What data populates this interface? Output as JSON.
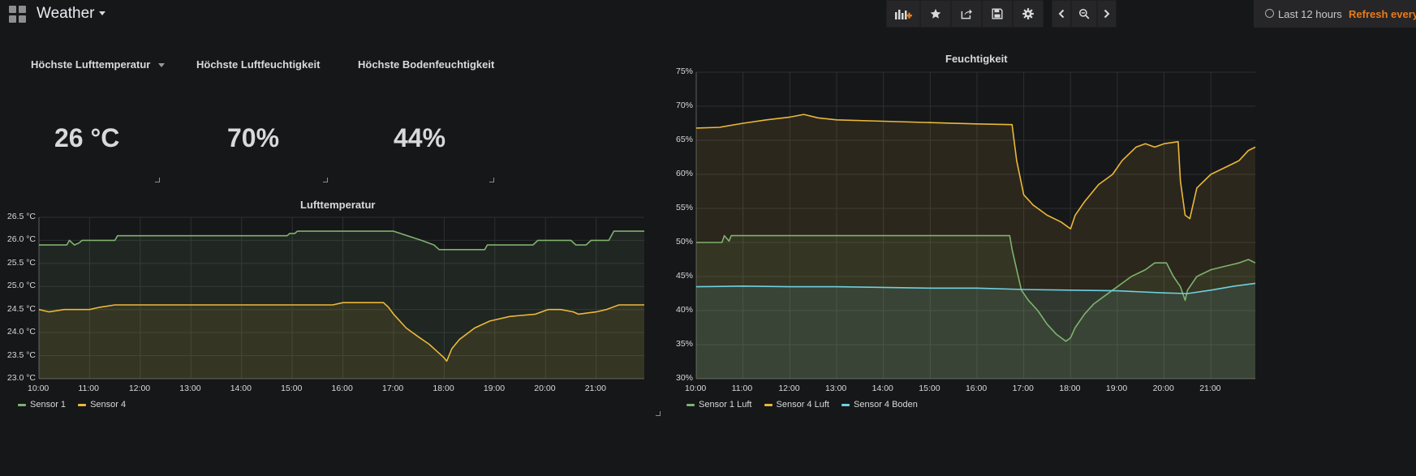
{
  "dashboard": {
    "title": "Weather"
  },
  "toolbar": {
    "buttons": [
      {
        "name": "add-panel-button",
        "icon": "add-panel-icon"
      },
      {
        "name": "star-button",
        "icon": "star-icon"
      },
      {
        "name": "share-button",
        "icon": "share-icon"
      },
      {
        "name": "save-button",
        "icon": "save-icon"
      },
      {
        "name": "settings-button",
        "icon": "gear-icon"
      }
    ],
    "time_range": "Last 12 hours",
    "refresh_label": "Refresh every"
  },
  "stats": [
    {
      "title": "Höchste Lufttemperatur",
      "value": "26 °C"
    },
    {
      "title": "Höchste Luftfeuchtigkeit",
      "value": "70%"
    },
    {
      "title": "Höchste Bodenfeuchtigkeit",
      "value": "44%"
    }
  ],
  "colors": {
    "green": "#7eb26d",
    "yellow": "#eab839",
    "blue": "#6ed0e0",
    "accent": "#eb7b18"
  },
  "chart_data": [
    {
      "type": "line",
      "title": "Lufttemperatur",
      "unit": "°C",
      "ylim": [
        23.0,
        26.5
      ],
      "yticks": [
        "26.5 °C",
        "26.0 °C",
        "25.5 °C",
        "25.0 °C",
        "24.5 °C",
        "24.0 °C",
        "23.5 °C",
        "23.0 °C"
      ],
      "ytick_values": [
        26.5,
        26.0,
        25.5,
        25.0,
        24.5,
        24.0,
        23.5,
        23.0
      ],
      "xlim": [
        10.0,
        21.95
      ],
      "xticks": [
        "10:00",
        "11:00",
        "12:00",
        "13:00",
        "14:00",
        "15:00",
        "16:00",
        "17:00",
        "18:00",
        "19:00",
        "20:00",
        "21:00"
      ],
      "xtick_values": [
        10,
        11,
        12,
        13,
        14,
        15,
        16,
        17,
        18,
        19,
        20,
        21
      ],
      "grid": true,
      "legend": "bottom-left",
      "series": [
        {
          "name": "Sensor 1",
          "color": "#7eb26d",
          "x": [
            10.0,
            10.55,
            10.6,
            10.7,
            10.8,
            10.85,
            11.5,
            11.55,
            12.0,
            12.6,
            12.65,
            14.0,
            14.9,
            14.95,
            15.05,
            15.1,
            15.7,
            16.5,
            17.0,
            17.55,
            17.8,
            17.9,
            18.8,
            18.85,
            19.0,
            19.75,
            19.85,
            20.4,
            20.5,
            20.6,
            20.8,
            20.9,
            21.25,
            21.35,
            21.95
          ],
          "y": [
            25.9,
            25.9,
            26.0,
            25.9,
            25.95,
            26.0,
            26.0,
            26.1,
            26.1,
            26.1,
            26.1,
            26.1,
            26.1,
            26.15,
            26.15,
            26.2,
            26.2,
            26.2,
            26.2,
            26.0,
            25.9,
            25.8,
            25.8,
            25.9,
            25.9,
            25.9,
            26.0,
            26.0,
            26.0,
            25.9,
            25.9,
            26.0,
            26.0,
            26.2,
            26.2
          ]
        },
        {
          "name": "Sensor 4",
          "color": "#eab839",
          "x": [
            10.0,
            10.2,
            10.5,
            11.0,
            11.2,
            11.5,
            12.0,
            13.0,
            14.0,
            15.0,
            15.8,
            16.0,
            16.5,
            16.8,
            16.9,
            17.0,
            17.25,
            17.5,
            17.7,
            17.9,
            18.0,
            18.05,
            18.15,
            18.3,
            18.6,
            18.9,
            19.3,
            19.8,
            20.05,
            20.3,
            20.55,
            20.65,
            21.0,
            21.2,
            21.45,
            21.95
          ],
          "y": [
            24.5,
            24.45,
            24.5,
            24.5,
            24.55,
            24.6,
            24.6,
            24.6,
            24.6,
            24.6,
            24.6,
            24.65,
            24.65,
            24.65,
            24.55,
            24.4,
            24.1,
            23.9,
            23.75,
            23.55,
            23.45,
            23.38,
            23.65,
            23.85,
            24.1,
            24.25,
            24.35,
            24.4,
            24.5,
            24.5,
            24.45,
            24.4,
            24.45,
            24.5,
            24.6,
            24.6
          ]
        }
      ]
    },
    {
      "type": "line",
      "title": "Feuchtigkeit",
      "unit": "%",
      "ylim": [
        30,
        75
      ],
      "yticks": [
        "75%",
        "70%",
        "65%",
        "60%",
        "55%",
        "50%",
        "45%",
        "40%",
        "35%",
        "30%"
      ],
      "ytick_values": [
        75,
        70,
        65,
        60,
        55,
        50,
        45,
        40,
        35,
        30
      ],
      "xlim": [
        10.0,
        21.95
      ],
      "xticks": [
        "10:00",
        "11:00",
        "12:00",
        "13:00",
        "14:00",
        "15:00",
        "16:00",
        "17:00",
        "18:00",
        "19:00",
        "20:00",
        "21:00"
      ],
      "xtick_values": [
        10,
        11,
        12,
        13,
        14,
        15,
        16,
        17,
        18,
        19,
        20,
        21
      ],
      "grid": true,
      "legend": "bottom-left",
      "series": [
        {
          "name": "Sensor 1 Luft",
          "color": "#7eb26d",
          "x": [
            10.0,
            10.55,
            10.6,
            10.7,
            10.75,
            11.0,
            12.0,
            13.0,
            14.0,
            15.0,
            16.0,
            16.7,
            16.75,
            16.85,
            16.95,
            17.1,
            17.3,
            17.5,
            17.7,
            17.9,
            18.0,
            18.1,
            18.3,
            18.5,
            18.7,
            18.9,
            19.1,
            19.3,
            19.6,
            19.8,
            20.05,
            20.2,
            20.35,
            20.45,
            20.5,
            20.7,
            21.0,
            21.3,
            21.6,
            21.8,
            21.95
          ],
          "y": [
            50,
            50,
            51,
            50.2,
            51,
            51,
            51,
            51,
            51,
            51,
            51,
            51,
            49,
            46,
            43,
            41.5,
            40,
            38,
            36.5,
            35.5,
            36,
            37.5,
            39.5,
            41,
            42,
            43,
            44,
            45,
            46,
            47,
            47,
            45,
            43.5,
            41.5,
            43,
            45,
            46,
            46.5,
            47,
            47.5,
            47
          ]
        },
        {
          "name": "Sensor 4 Luft",
          "color": "#eab839",
          "x": [
            10.0,
            10.5,
            11.0,
            11.5,
            12.0,
            12.3,
            12.6,
            13.0,
            14.0,
            15.0,
            16.0,
            16.75,
            16.85,
            17.0,
            17.2,
            17.5,
            17.8,
            18.0,
            18.1,
            18.3,
            18.6,
            18.9,
            19.1,
            19.4,
            19.6,
            19.8,
            20.0,
            20.3,
            20.35,
            20.45,
            20.55,
            20.7,
            21.0,
            21.3,
            21.6,
            21.8,
            21.95
          ],
          "y": [
            66.8,
            66.9,
            67.5,
            68,
            68.4,
            68.8,
            68.3,
            68,
            67.8,
            67.6,
            67.4,
            67.3,
            62,
            57,
            55.5,
            54,
            53,
            52,
            54,
            56,
            58.5,
            60,
            62,
            64,
            64.5,
            64,
            64.5,
            64.8,
            59,
            54,
            53.5,
            58,
            60,
            61,
            62,
            63.5,
            64
          ]
        },
        {
          "name": "Sensor 4 Boden",
          "color": "#6ed0e0",
          "x": [
            10.0,
            11.0,
            12.0,
            13.0,
            14.0,
            15.0,
            16.0,
            17.0,
            18.0,
            19.0,
            20.0,
            20.5,
            21.0,
            21.5,
            21.95
          ],
          "y": [
            43.5,
            43.6,
            43.5,
            43.5,
            43.4,
            43.3,
            43.3,
            43.1,
            43.0,
            42.9,
            42.6,
            42.5,
            43.0,
            43.6,
            44.0
          ]
        }
      ]
    }
  ]
}
